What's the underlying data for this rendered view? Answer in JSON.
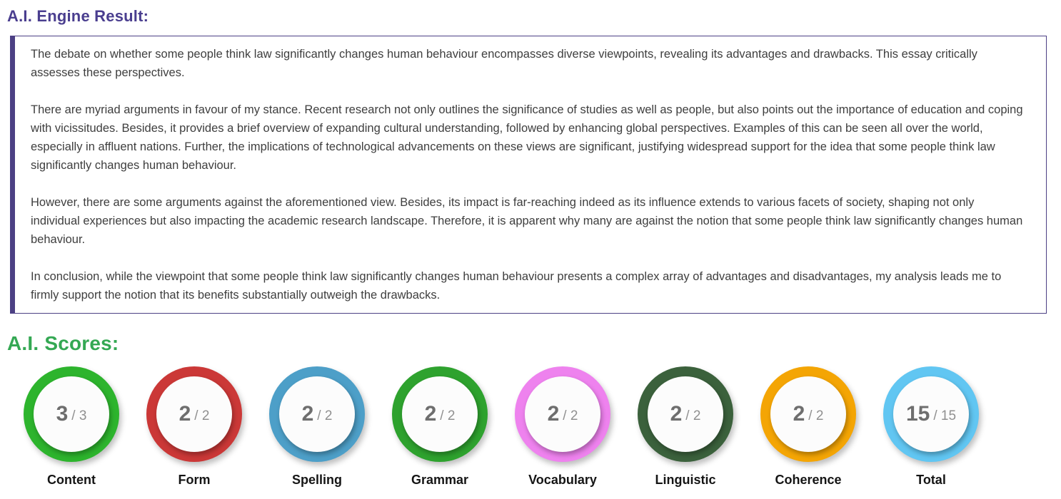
{
  "headings": {
    "result": "A.I. Engine Result:",
    "scores": "A.I. Scores:"
  },
  "colors": {
    "result_heading": "#4a3e8f",
    "scores_heading": "#34a853",
    "box_border": "#4c4084"
  },
  "result": {
    "paragraphs": [
      "The debate on whether some people think law significantly changes human behaviour encompasses diverse viewpoints, revealing its advantages and drawbacks. This essay critically assesses these perspectives.",
      "There are myriad arguments in favour of my stance. Recent research not only outlines the significance of studies as well as people, but also points out the importance of education and coping with vicissitudes. Besides, it provides a brief overview of expanding cultural understanding, followed by enhancing global perspectives. Examples of this can be seen all over the world, especially in affluent nations. Further, the implications of technological advancements on these views are significant, justifying widespread support for the idea that some people think law significantly changes human behaviour.",
      "However, there are some arguments against the aforementioned view. Besides, its impact is far-reaching indeed as its influence extends to various facets of society, shaping not only individual experiences but also impacting the academic research landscape. Therefore, it is apparent why many are against the notion that some people think law significantly changes human behaviour.",
      "In conclusion, while the viewpoint that some people think law significantly changes human behaviour presents a complex array of advantages and disadvantages, my analysis leads me to firmly support the notion that its benefits substantially outweigh the drawbacks."
    ]
  },
  "scores": {
    "items": [
      {
        "label": "Content",
        "score": "3",
        "max": "3",
        "color": "#2db42d"
      },
      {
        "label": "Form",
        "score": "2",
        "max": "2",
        "color": "#cb3837"
      },
      {
        "label": "Spelling",
        "score": "2",
        "max": "2",
        "color": "#4d9fc8"
      },
      {
        "label": "Grammar",
        "score": "2",
        "max": "2",
        "color": "#2ea22e"
      },
      {
        "label": "Vocabulary",
        "score": "2",
        "max": "2",
        "color": "#ee82ee"
      },
      {
        "label": "Linguistic",
        "score": "2",
        "max": "2",
        "color": "#3b613c"
      },
      {
        "label": "Coherence",
        "score": "2",
        "max": "2",
        "color": "#f4a504"
      },
      {
        "label": "Total",
        "score": "15",
        "max": "15",
        "color": "#61c6f2"
      }
    ]
  }
}
